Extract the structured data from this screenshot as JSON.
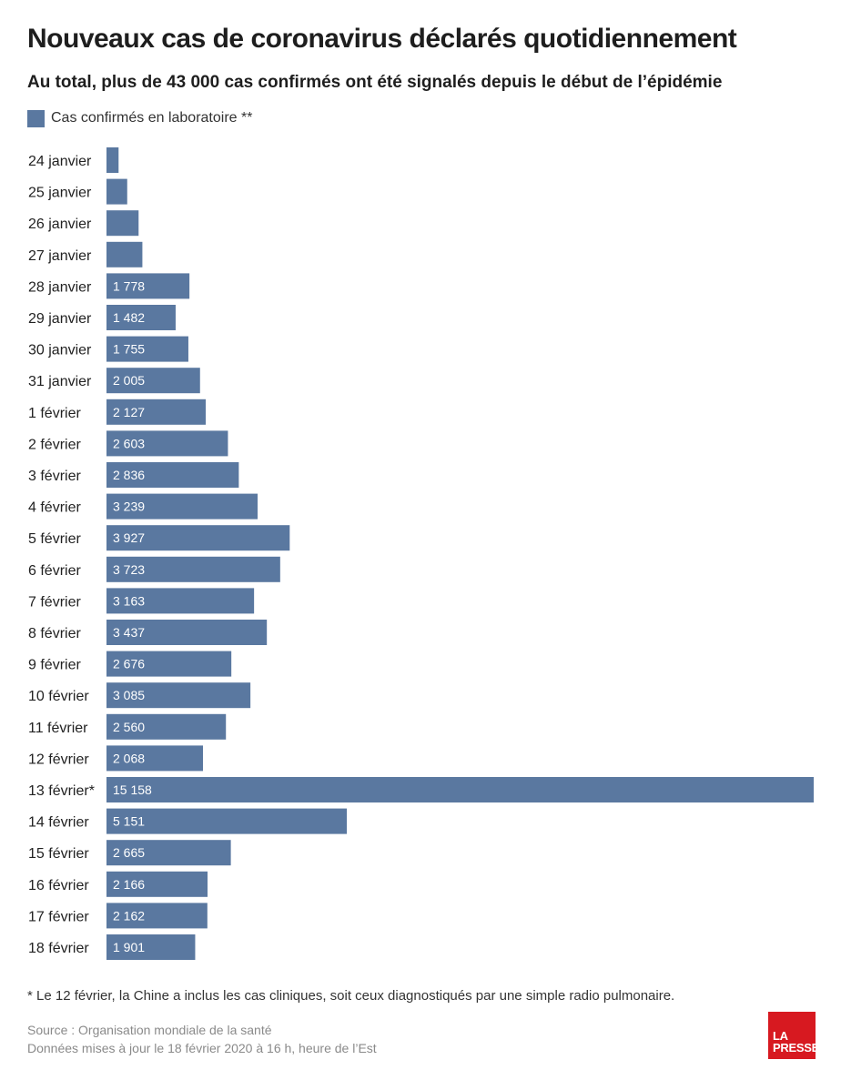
{
  "header": {
    "title": "Nouveaux cas de coronavirus déclarés quotidiennement",
    "subtitle": "Au total, plus de 43 000 cas confirmés ont été signalés depuis le début de l’épidémie"
  },
  "legend": {
    "label": "Cas confirmés en laboratoire **"
  },
  "colors": {
    "bar": "#5a78a0",
    "bar_label": "#ffffff",
    "logo": "#d71920"
  },
  "chart_data": {
    "type": "bar",
    "orientation": "horizontal",
    "categories": [
      "24 janvier",
      "25 janvier",
      "26 janvier",
      "27 janvier",
      "28 janvier",
      "29 janvier",
      "30 janvier",
      "31 janvier",
      "1 février",
      "2 février",
      "3 février",
      "4 février",
      "5 février",
      "6 février",
      "7 février",
      "8 février",
      "9 février",
      "10 février",
      "11 février",
      "12 février",
      "13 février*",
      "14 février",
      "15 février",
      "16 février",
      "17 février",
      "18 février"
    ],
    "series": [
      {
        "name": "Cas confirmés en laboratoire **",
        "values": [
          259,
          444,
          688,
          769,
          1778,
          1482,
          1755,
          2005,
          2127,
          2603,
          2836,
          3239,
          3927,
          3723,
          3163,
          3437,
          2676,
          3085,
          2560,
          2068,
          15158,
          5151,
          2665,
          2166,
          2162,
          1901
        ],
        "labels": [
          "",
          "",
          "",
          "",
          "1 778",
          "1 482",
          "1 755",
          "2 005",
          "2 127",
          "2 603",
          "2 836",
          "3 239",
          "3 927",
          "3 723",
          "3 163",
          "3 437",
          "2 676",
          "3 085",
          "2 560",
          "2 068",
          "15 158",
          "5 151",
          "2 665",
          "2 166",
          "2 162",
          "1 901"
        ]
      }
    ],
    "xlim": [
      0,
      15158
    ],
    "grid": false,
    "legend_position": "top-left"
  },
  "footnote": "* Le 12 février, la Chine a inclus les cas cliniques, soit ceux diagnostiqués par une simple radio pulmonaire.",
  "source": {
    "line1": "Source : Organisation mondiale de la santé",
    "line2": "Données mises à jour le 18 février 2020 à 16 h, heure de l’Est"
  },
  "logo": {
    "line1": "LA",
    "line2": "PRESSE"
  }
}
